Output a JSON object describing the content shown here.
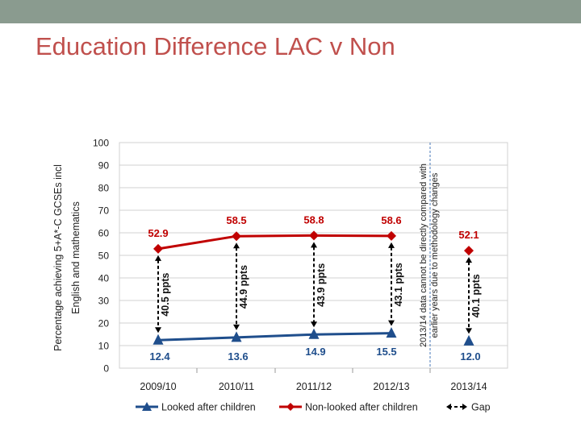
{
  "slide": {
    "title": "Education Difference LAC v Non"
  },
  "colors": {
    "topbar": "#8a9b8f",
    "title": "#c0504d",
    "lac": "#1f4e8c",
    "non_lac": "#c00000",
    "gap": "#000000",
    "grid": "#d0d0d0"
  },
  "chart_data": {
    "type": "line",
    "title": "",
    "xlabel": "",
    "ylabel": "Percentage achieving 5+A*-C GCSEs incl English and mathematics",
    "ylabel_lines": [
      "Percentage achieving 5+A*-C GCSEs incl",
      "English and mathematics"
    ],
    "ylim": [
      0,
      100
    ],
    "yticks": [
      0,
      10,
      20,
      30,
      40,
      50,
      60,
      70,
      80,
      90,
      100
    ],
    "categories": [
      "2009/10",
      "2010/11",
      "2011/12",
      "2012/13",
      "2013/14"
    ],
    "series": [
      {
        "name": "Looked after children",
        "values": [
          12.4,
          13.6,
          14.9,
          15.5,
          12.0
        ],
        "labels": [
          "12.4",
          "13.6",
          "14.9",
          "15.5",
          "12.0"
        ],
        "marker": "triangle",
        "color": "#1f4e8c"
      },
      {
        "name": "Non-looked after children",
        "values": [
          52.9,
          58.5,
          58.8,
          58.6,
          52.1
        ],
        "labels": [
          "52.9",
          "58.5",
          "58.8",
          "58.6",
          "52.1"
        ],
        "marker": "diamond",
        "color": "#c00000"
      }
    ],
    "connected_points": 4,
    "gaps": [
      "40.5 ppts",
      "44.9 ppts",
      "43.9 ppts",
      "43.1 ppts",
      "40.1 ppts"
    ],
    "gap_legend": "Gap",
    "annotation_lines": [
      "2013/14 data cannot be directly compared with",
      "earlier years  due to methodology changes"
    ],
    "grid": true,
    "legend_position": "bottom"
  }
}
